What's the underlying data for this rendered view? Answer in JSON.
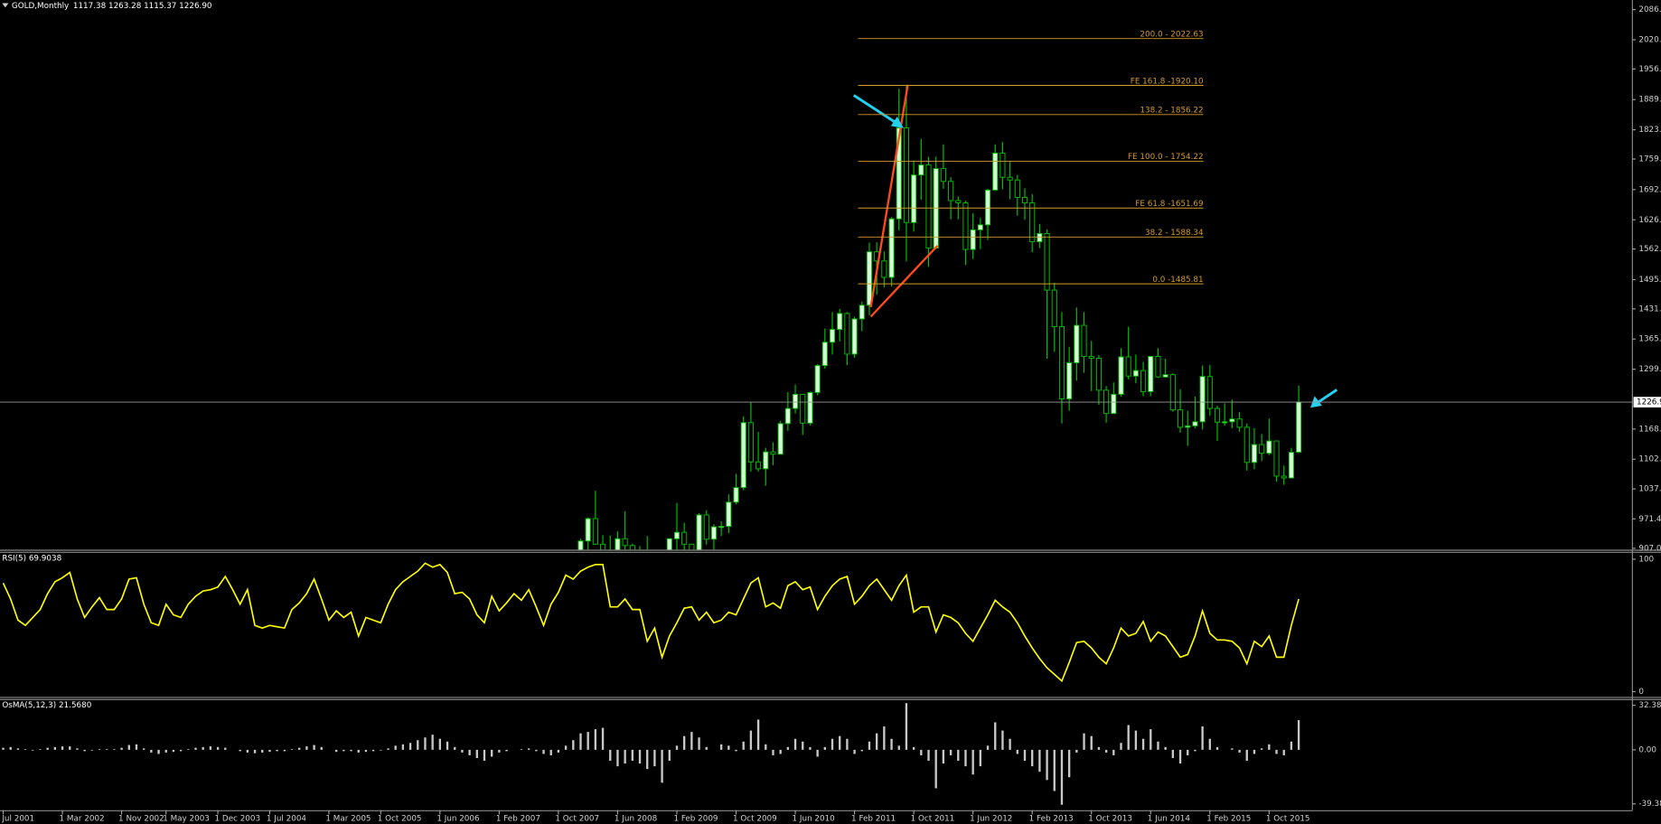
{
  "chart_data": [
    {
      "type": "candlestick",
      "title": "GOLD,Monthly",
      "ohlc_label": "1117.38 1263.28 1115.37 1226.90",
      "bull_color": "#d8ffd8",
      "bear_color": "#000000",
      "wick_color": "#00c000",
      "ylim": [
        904,
        2107
      ],
      "yticks": [
        {
          "value": 907,
          "label": "907.0"
        },
        971.4,
        {
          "value": 1037,
          "label": "1037."
        },
        {
          "value": 1102,
          "label": "1102."
        },
        {
          "value": 1168,
          "label": "1168."
        },
        {
          "value": 1299,
          "label": "1299."
        },
        {
          "value": 1365,
          "label": "1365."
        },
        {
          "value": 1431,
          "label": "1431."
        },
        {
          "value": 1495,
          "label": "1495."
        },
        {
          "value": 1562,
          "label": "1562."
        },
        {
          "value": 1626,
          "label": "1626."
        },
        {
          "value": 1692,
          "label": "1692."
        },
        {
          "value": 1759,
          "label": "1759."
        },
        {
          "value": 1823,
          "label": "1823."
        },
        {
          "value": 1889,
          "label": "1889."
        },
        {
          "value": 1956,
          "label": "1956."
        },
        {
          "value": 2020,
          "label": "2020."
        },
        {
          "value": 2086,
          "label": "2086."
        }
      ],
      "price_line": {
        "value": 1226.9,
        "label": "1226.90"
      },
      "price_line_color": "#9a9a9a",
      "fibo_color": "#d49a2a",
      "fibo_levels": [
        {
          "value": 2022.63,
          "label": "200.0 - 2022.63"
        },
        {
          "value": 1920.1,
          "label": "FE 161.8 -1920.10"
        },
        {
          "value": 1856.22,
          "label": "138.2 - 1856.22"
        },
        {
          "value": 1754.22,
          "label": "FE 100.0 - 1754.22"
        },
        {
          "value": 1651.69,
          "label": "FE 61.8 -1651.69"
        },
        {
          "value": 1588.34,
          "label": "38.2 - 1588.34"
        },
        {
          "value": 1485.81,
          "label": "0.0 -1485.81"
        }
      ],
      "open": [
        null,
        null,
        null,
        null,
        null,
        null,
        null,
        null,
        null,
        null,
        null,
        null,
        null,
        null,
        null,
        null,
        null,
        null,
        null,
        null,
        null,
        null,
        null,
        null,
        null,
        null,
        null,
        null,
        null,
        null,
        null,
        null,
        null,
        null,
        null,
        null,
        null,
        null,
        null,
        null,
        null,
        null,
        null,
        null,
        null,
        null,
        null,
        null,
        null,
        null,
        null,
        null,
        null,
        null,
        null,
        null,
        null,
        null,
        null,
        null,
        null,
        null,
        null,
        null,
        null,
        null,
        null,
        null,
        null,
        null,
        null,
        null,
        null,
        null,
        null,
        null,
        null,
        null,
        834,
        923,
        972,
        916,
        864,
        885,
        928,
        913,
        833,
        880,
        718,
        814,
        882,
        928,
        942,
        916,
        883,
        980,
        927,
        954,
        955,
        1008,
        1040,
        1182,
        1096,
        1081,
        1118,
        1113,
        1180,
        1213,
        1244,
        1181,
        1248,
        1307,
        1358,
        1386,
        1421,
        1332,
        1409,
        1439,
        1556,
        1536,
        1500,
        1628,
        1827,
        1620,
        1724,
        1746,
        1564,
        1738,
        1710,
        1668,
        1663,
        1561,
        1604,
        1615,
        1691,
        1772,
        1719,
        1713,
        1675,
        1663,
        1578,
        1596,
        1472,
        1392,
        1234,
        1313,
        1395,
        1327,
        1323,
        1253,
        1202,
        1244,
        1326,
        1284,
        1296,
        1250,
        1327,
        1282,
        1287,
        1210,
        1172,
        1175,
        1184,
        1283,
        1213,
        1183,
        1184,
        1190,
        1172,
        1095,
        1134,
        1115,
        1142,
        1065,
        1061,
        1117.38
      ],
      "high": [
        null,
        null,
        null,
        null,
        null,
        null,
        null,
        null,
        null,
        null,
        null,
        null,
        null,
        null,
        null,
        null,
        null,
        null,
        null,
        null,
        null,
        null,
        null,
        null,
        null,
        null,
        null,
        null,
        null,
        null,
        null,
        null,
        null,
        null,
        null,
        null,
        null,
        null,
        null,
        null,
        null,
        null,
        null,
        null,
        null,
        null,
        null,
        null,
        null,
        null,
        null,
        null,
        null,
        null,
        null,
        null,
        null,
        null,
        null,
        null,
        null,
        null,
        null,
        null,
        null,
        null,
        null,
        null,
        null,
        null,
        null,
        null,
        null,
        null,
        null,
        null,
        null,
        null,
        928,
        975,
        1033,
        936,
        935,
        944,
        988,
        917,
        912,
        934,
        829,
        887,
        929,
        1006,
        963,
        916,
        984,
        990,
        960,
        966,
        1025,
        1070,
        1196,
        1227,
        1162,
        1127,
        1139,
        1186,
        1249,
        1265,
        1245,
        1250,
        1310,
        1388,
        1424,
        1431,
        1424,
        1414,
        1447,
        1576,
        1577,
        1557,
        1632,
        1913,
        1920,
        1756,
        1803,
        1764,
        1764,
        1791,
        1719,
        1677,
        1668,
        1640,
        1630,
        1694,
        1791,
        1796,
        1755,
        1724,
        1695,
        1682,
        1617,
        1605,
        1488,
        1424,
        1348,
        1434,
        1424,
        1361,
        1330,
        1262,
        1270,
        1345,
        1392,
        1331,
        1315,
        1326,
        1345,
        1322,
        1290,
        1255,
        1208,
        1239,
        1307,
        1308,
        1219,
        1224,
        1232,
        1205,
        1180,
        1170,
        1157,
        1191,
        1142,
        1088,
        1127,
        1263.28
      ],
      "low": [
        null,
        null,
        null,
        null,
        null,
        null,
        null,
        null,
        null,
        null,
        null,
        null,
        null,
        null,
        null,
        null,
        null,
        null,
        null,
        null,
        null,
        null,
        null,
        null,
        null,
        null,
        null,
        null,
        null,
        null,
        null,
        null,
        null,
        null,
        null,
        null,
        null,
        null,
        null,
        null,
        null,
        null,
        null,
        null,
        null,
        null,
        null,
        null,
        null,
        null,
        null,
        null,
        null,
        null,
        null,
        null,
        null,
        null,
        null,
        null,
        null,
        null,
        null,
        null,
        null,
        null,
        null,
        null,
        null,
        null,
        null,
        null,
        null,
        null,
        null,
        null,
        null,
        null,
        832,
        887,
        915,
        861,
        851,
        861,
        904,
        786,
        736,
        681,
        704,
        745,
        800,
        889,
        864,
        865,
        882,
        915,
        904,
        934,
        940,
        1003,
        1034,
        1075,
        1075,
        1044,
        1089,
        1112,
        1164,
        1202,
        1155,
        1176,
        1242,
        1300,
        1331,
        1360,
        1308,
        1324,
        1382,
        1417,
        1462,
        1478,
        1480,
        1603,
        1535,
        1600,
        1670,
        1523,
        1562,
        1694,
        1627,
        1627,
        1527,
        1540,
        1562,
        1582,
        1689,
        1693,
        1671,
        1635,
        1626,
        1555,
        1564,
        1322,
        1337,
        1180,
        1208,
        1274,
        1291,
        1251,
        1221,
        1182,
        1202,
        1239,
        1277,
        1268,
        1240,
        1240,
        1280,
        1280,
        1206,
        1160,
        1131,
        1170,
        1167,
        1197,
        1142,
        1175,
        1170,
        1162,
        1077,
        1080,
        1098,
        1111,
        1053,
        1046,
        1060,
        1115.37
      ],
      "close": [
        null,
        null,
        null,
        null,
        null,
        null,
        null,
        null,
        null,
        null,
        null,
        null,
        null,
        null,
        null,
        null,
        null,
        null,
        null,
        null,
        null,
        null,
        null,
        null,
        null,
        null,
        null,
        null,
        null,
        null,
        null,
        null,
        null,
        null,
        null,
        null,
        null,
        null,
        null,
        null,
        null,
        null,
        null,
        null,
        null,
        null,
        null,
        null,
        null,
        null,
        null,
        null,
        null,
        null,
        null,
        null,
        null,
        null,
        null,
        null,
        null,
        null,
        null,
        null,
        null,
        null,
        null,
        null,
        null,
        null,
        null,
        null,
        null,
        null,
        null,
        null,
        null,
        null,
        923,
        972,
        916,
        864,
        885,
        928,
        913,
        833,
        880,
        718,
        814,
        882,
        928,
        942,
        916,
        883,
        980,
        927,
        954,
        955,
        1008,
        1040,
        1182,
        1096,
        1081,
        1118,
        1113,
        1180,
        1213,
        1244,
        1181,
        1248,
        1307,
        1358,
        1386,
        1421,
        1332,
        1409,
        1439,
        1556,
        1536,
        1500,
        1628,
        1827,
        1620,
        1724,
        1746,
        1564,
        1738,
        1710,
        1668,
        1663,
        1561,
        1604,
        1615,
        1691,
        1772,
        1719,
        1713,
        1675,
        1663,
        1578,
        1596,
        1472,
        1392,
        1234,
        1313,
        1395,
        1327,
        1323,
        1253,
        1202,
        1244,
        1326,
        1284,
        1296,
        1250,
        1327,
        1282,
        1287,
        1210,
        1172,
        1175,
        1184,
        1283,
        1213,
        1183,
        1184,
        1190,
        1172,
        1095,
        1134,
        1115,
        1142,
        1065,
        1061,
        1117,
        1226.9
      ]
    },
    {
      "type": "line",
      "title": "RSI(5) 69.9038",
      "color": "#ffff00",
      "ylim": [
        -3.2,
        104.8
      ],
      "yticks": [
        100,
        0
      ],
      "values": [
        82,
        70,
        54,
        50,
        56,
        62,
        74,
        83,
        86,
        90,
        70,
        56,
        64,
        71,
        62,
        62,
        70,
        85,
        86,
        66,
        52,
        50,
        66,
        58,
        56,
        66,
        72,
        76,
        77,
        79,
        87,
        77,
        66,
        77,
        50,
        48,
        50,
        49,
        48,
        62,
        67,
        74,
        85,
        70,
        54,
        61,
        56,
        60,
        42,
        56,
        54,
        52,
        66,
        77,
        83,
        87,
        91,
        97,
        94,
        96,
        90,
        74,
        75,
        70,
        58,
        52,
        72,
        61,
        67,
        74,
        69,
        77,
        64,
        50,
        66,
        75,
        88,
        85,
        91,
        94,
        96,
        96,
        64,
        64,
        70,
        62,
        62,
        38,
        48,
        26,
        42,
        52,
        63,
        64,
        54,
        60,
        52,
        54,
        60,
        58,
        70,
        82,
        86,
        64,
        67,
        63,
        80,
        83,
        77,
        79,
        62,
        72,
        80,
        85,
        87,
        66,
        72,
        80,
        85,
        77,
        69,
        80,
        88,
        60,
        64,
        64,
        45,
        58,
        56,
        52,
        44,
        38,
        48,
        58,
        69,
        64,
        60,
        52,
        42,
        33,
        25,
        18,
        13,
        8,
        22,
        37,
        38,
        33,
        26,
        21,
        33,
        48,
        42,
        44,
        53,
        38,
        45,
        42,
        34,
        26,
        28,
        42,
        61,
        44,
        39,
        39,
        38,
        33,
        21,
        38,
        34,
        42,
        26,
        26,
        50,
        69.9038
      ]
    },
    {
      "type": "bar",
      "title": "OsMA(5,12,3) 21.5680",
      "color": "#c8c8c8",
      "ylim": [
        -44,
        36.2
      ],
      "yticks": [
        32.38,
        {
          "value": 0,
          "label": "0.00"
        },
        -39.38
      ],
      "values": [
        1.5,
        2,
        1,
        0.5,
        -0.5,
        0.5,
        1.5,
        2,
        2.5,
        2.5,
        1,
        -1,
        -0.5,
        0.5,
        0.5,
        0.5,
        1.5,
        3.5,
        4,
        1,
        -2,
        -3,
        -2,
        -1.5,
        -1,
        0.5,
        1.5,
        2,
        2.5,
        2,
        1.5,
        0,
        -1,
        -2,
        -2.5,
        -2,
        -1.5,
        -1,
        -1,
        0.5,
        1.5,
        2.5,
        3.5,
        2,
        0,
        -1.5,
        -1,
        -1,
        -2,
        -1.5,
        -1,
        -0.5,
        1,
        3,
        4,
        5,
        7,
        9,
        11,
        8,
        6,
        2,
        -2,
        -4,
        -6,
        -8,
        -5,
        -2,
        -1,
        0,
        0.5,
        1,
        -1,
        -3,
        -4,
        -2,
        3,
        7,
        12,
        13,
        15,
        16,
        -8,
        -12,
        -10,
        -8,
        -10,
        -14,
        -12,
        -24,
        -8,
        3,
        10,
        13,
        9,
        2,
        0,
        4,
        3,
        -1,
        6,
        14,
        22,
        4,
        -4,
        -3,
        2,
        8,
        6,
        2,
        -5,
        2,
        8,
        10,
        8,
        -3,
        -1,
        6,
        12,
        17,
        8,
        3,
        34,
        2,
        -4,
        -8,
        -28,
        -10,
        -4,
        -8,
        -12,
        -18,
        -12,
        3,
        20,
        14,
        8,
        -3,
        -8,
        -12,
        -16,
        -22,
        -30,
        -40,
        -20,
        -2,
        12,
        10,
        2,
        -2,
        -4,
        5,
        18,
        14,
        8,
        15,
        6,
        2,
        -6,
        -10,
        -4,
        -1,
        17,
        8,
        2,
        0,
        1,
        -2,
        -8,
        -3,
        1,
        4,
        -3,
        -4,
        6,
        21.568
      ],
      "categories": [
        "Jul 2001",
        null,
        null,
        null,
        null,
        null,
        null,
        null,
        "1 Mar 2002",
        null,
        null,
        null,
        null,
        null,
        null,
        null,
        "1 Nov 2002",
        null,
        null,
        null,
        null,
        null,
        "1 May 2003",
        null,
        null,
        null,
        null,
        null,
        null,
        "1 Dec 2003",
        null,
        null,
        null,
        null,
        null,
        null,
        "1 Jul 2004",
        null,
        null,
        null,
        null,
        null,
        null,
        null,
        "1 Mar 2005",
        null,
        null,
        null,
        null,
        null,
        null,
        "1 Oct 2005",
        null,
        null,
        null,
        null,
        null,
        null,
        null,
        "1 Jun 2006",
        null,
        null,
        null,
        null,
        null,
        null,
        null,
        "1 Feb 2007",
        null,
        null,
        null,
        null,
        null,
        null,
        null,
        "1 Oct 2007",
        null,
        null,
        null,
        null,
        null,
        null,
        null,
        "1 Jun 2008",
        null,
        null,
        null,
        null,
        null,
        null,
        null,
        "1 Feb 2009",
        null,
        null,
        null,
        null,
        null,
        null,
        null,
        "1 Oct 2009",
        null,
        null,
        null,
        null,
        null,
        null,
        null,
        "1 Jun 2010",
        null,
        null,
        null,
        null,
        null,
        null,
        null,
        "1 Feb 2011",
        null,
        null,
        null,
        null,
        null,
        null,
        null,
        "1 Oct 2011",
        null,
        null,
        null,
        null,
        null,
        null,
        null,
        "1 Jun 2012",
        null,
        null,
        null,
        null,
        null,
        null,
        null,
        "1 Feb 2013",
        null,
        null,
        null,
        null,
        null,
        null,
        null,
        "1 Oct 2013",
        null,
        null,
        null,
        null,
        null,
        null,
        null,
        "1 Jun 2014",
        null,
        null,
        null,
        null,
        null,
        null,
        null,
        "1 Feb 2015",
        null,
        null,
        null,
        null,
        null,
        null,
        null,
        "1 Oct 2015",
        null,
        null,
        null,
        null
      ]
    }
  ]
}
